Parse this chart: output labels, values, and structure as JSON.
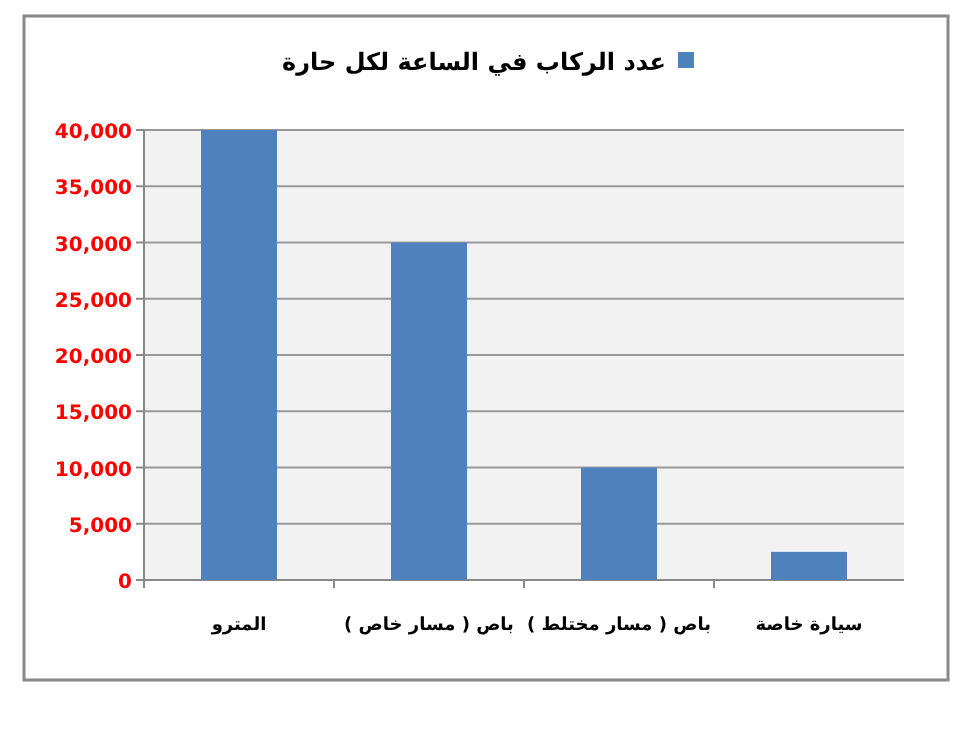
{
  "chart_data": {
    "type": "bar",
    "categories": [
      "المترو",
      "باص ( مسار خاص )",
      "باص ( مسار مختلط )",
      "سيارة خاصة"
    ],
    "series": [
      {
        "name": "عدد الركاب في الساعة لكل حارة",
        "color": "#4f81bd",
        "values": [
          40000,
          30000,
          10000,
          2500
        ]
      }
    ],
    "ylim": [
      0,
      40000
    ],
    "yticks": [
      0,
      {
        "value": 5000,
        "label": "5,000"
      },
      {
        "value": 10000,
        "label": "10,000"
      },
      {
        "value": 15000,
        "label": "15,000"
      },
      {
        "value": 20000,
        "label": "20,000"
      },
      {
        "value": 25000,
        "label": "25,000"
      },
      {
        "value": 30000,
        "label": "30,000"
      },
      {
        "value": 35000,
        "label": "35,000"
      },
      {
        "value": 40000,
        "label": "40,000"
      }
    ],
    "grid": "y",
    "legend": "top"
  }
}
